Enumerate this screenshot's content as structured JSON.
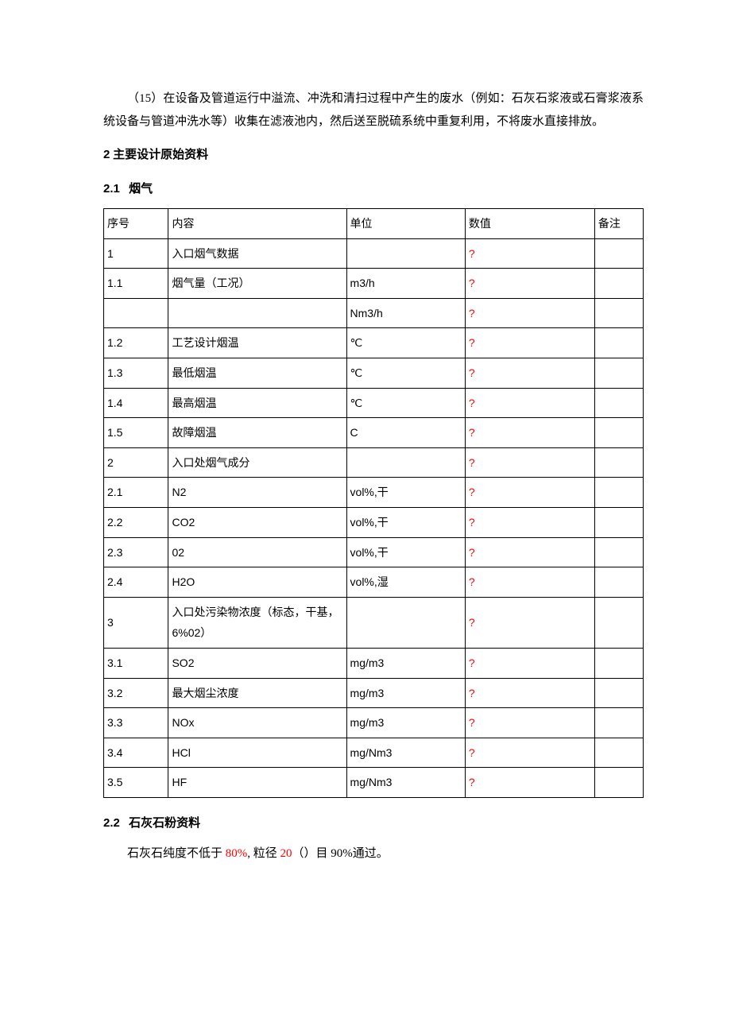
{
  "paragraph_15": "（15）在设备及管道运行中溢流、冲洗和清扫过程中产生的废水（例如：石灰石浆液或石膏浆液系统设备与管道冲洗水等）收集在滤液池内，然后送至脱硫系统中重复利用，不将废水直接排放。",
  "heading_2": "主要设计原始资料",
  "heading_2_num": "2",
  "heading_21_num": "2.1",
  "heading_21": "烟气",
  "heading_22_num": "2.2",
  "heading_22": "石灰石粉资料",
  "limestone_line_pre": "石灰石纯度不低于 ",
  "limestone_80": "80%",
  "limestone_mid": ", 粒径 ",
  "limestone_20": "20",
  "limestone_post": "（）目 90%通过。",
  "table": {
    "columns": [
      "序号",
      "内容",
      "单位",
      "数值",
      "备注"
    ],
    "placeholder": "?",
    "placeholder_color": "#ff0000",
    "border_color": "#000000",
    "rows": [
      {
        "num": "1",
        "label": "入口烟气数据",
        "unit": "",
        "val": "?",
        "note": ""
      },
      {
        "num": "1.1",
        "label": "烟气量（工况）",
        "unit": "m3/h",
        "val": "?",
        "note": ""
      },
      {
        "num": "",
        "label": "",
        "unit": "Nm3/h",
        "val": "?",
        "note": ""
      },
      {
        "num": "1.2",
        "label": "工艺设计烟温",
        "unit": "℃",
        "val": "?",
        "note": ""
      },
      {
        "num": "1.3",
        "label": "最低烟温",
        "unit": "℃",
        "val": "?",
        "note": ""
      },
      {
        "num": "1.4",
        "label": "最高烟温",
        "unit": "℃",
        "val": "?",
        "note": ""
      },
      {
        "num": "1.5",
        "label": "故障烟温",
        "unit": "C",
        "val": "?",
        "note": ""
      },
      {
        "num": "2",
        "label": "入口处烟气成分",
        "unit": "",
        "val": "?",
        "note": ""
      },
      {
        "num": "2.1",
        "label": "N2",
        "unit": "vol%,干",
        "val": "?",
        "note": ""
      },
      {
        "num": "2.2",
        "label": "CO2",
        "unit": "vol%,干",
        "val": "?",
        "note": ""
      },
      {
        "num": "2.3",
        "label": "02",
        "unit": "vol%,干",
        "val": "?",
        "note": ""
      },
      {
        "num": "2.4",
        "label": "H2O",
        "unit": "vol%,湿",
        "val": "?",
        "note": ""
      },
      {
        "num": "3",
        "label": "入口处污染物浓度（标态，干基，6%02）",
        "unit": "",
        "val": "?",
        "note": ""
      },
      {
        "num": "3.1",
        "label": "SO2",
        "unit": "mg/m3",
        "val": "?",
        "note": ""
      },
      {
        "num": "3.2",
        "label": "最大烟尘浓度",
        "unit": "mg/m3",
        "val": "?",
        "note": ""
      },
      {
        "num": "3.3",
        "label": "NOx",
        "unit": "mg/m3",
        "val": "?",
        "note": ""
      },
      {
        "num": "3.4",
        "label": "HCl",
        "unit": "mg/Nm3",
        "val": "?",
        "note": ""
      },
      {
        "num": "3.5",
        "label": "HF",
        "unit": "mg/Nm3",
        "val": "?",
        "note": ""
      }
    ]
  }
}
